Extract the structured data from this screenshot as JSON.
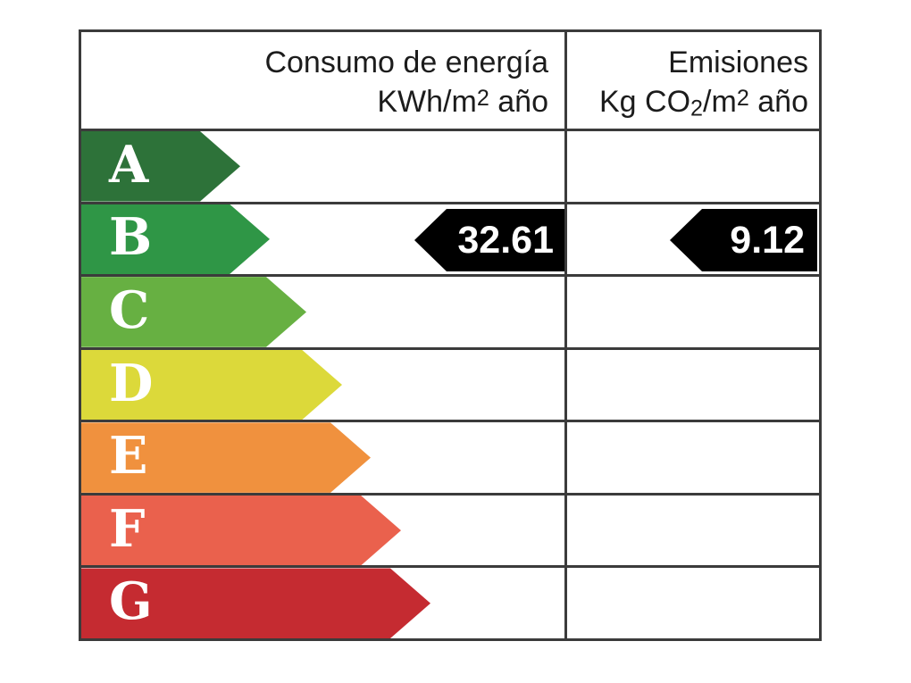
{
  "header": {
    "consumption_line1": "Consumo de energía",
    "consumption_line2": {
      "pre": "KWh/m",
      "sup": "2",
      "post": " año"
    },
    "emissions_line1": "Emisiones",
    "emissions_line2": {
      "pre": "Kg CO",
      "sub": "2",
      "mid": "/m",
      "sup": "2",
      "post": " año"
    }
  },
  "ratings": [
    {
      "letter": "A",
      "color": "#2d7239",
      "arrow_width": 178
    },
    {
      "letter": "B",
      "color": "#2f9646",
      "arrow_width": 211
    },
    {
      "letter": "C",
      "color": "#67b042",
      "arrow_width": 252
    },
    {
      "letter": "D",
      "color": "#dcd93a",
      "arrow_width": 292
    },
    {
      "letter": "E",
      "color": "#f0913e",
      "arrow_width": 324
    },
    {
      "letter": "F",
      "color": "#ea614d",
      "arrow_width": 358
    },
    {
      "letter": "G",
      "color": "#c52b31",
      "arrow_width": 391
    }
  ],
  "values": {
    "consumption": "32.61",
    "emissions": "9.12",
    "rated_letter": "B"
  },
  "colors": {
    "border": "#3b3b3b",
    "value_arrow_bg": "#000000",
    "value_text": "#ffffff",
    "letter_text": "#ffffff",
    "header_text": "#1c1c1c"
  },
  "chart_data": {
    "type": "table",
    "title": "Energy efficiency rating label",
    "columns": [
      "Consumo de energía KWh/m2 año",
      "Emisiones Kg CO2/m2 año"
    ],
    "rating_scale": [
      "A",
      "B",
      "C",
      "D",
      "E",
      "F",
      "G"
    ],
    "rating_colors": [
      "#2d7239",
      "#2f9646",
      "#67b042",
      "#dcd93a",
      "#f0913e",
      "#ea614d",
      "#c52b31"
    ],
    "assigned_rating": "B",
    "consumption_kwh_m2_year": 32.61,
    "emissions_kg_co2_m2_year": 9.12,
    "legend_position": "none",
    "grid": true
  }
}
